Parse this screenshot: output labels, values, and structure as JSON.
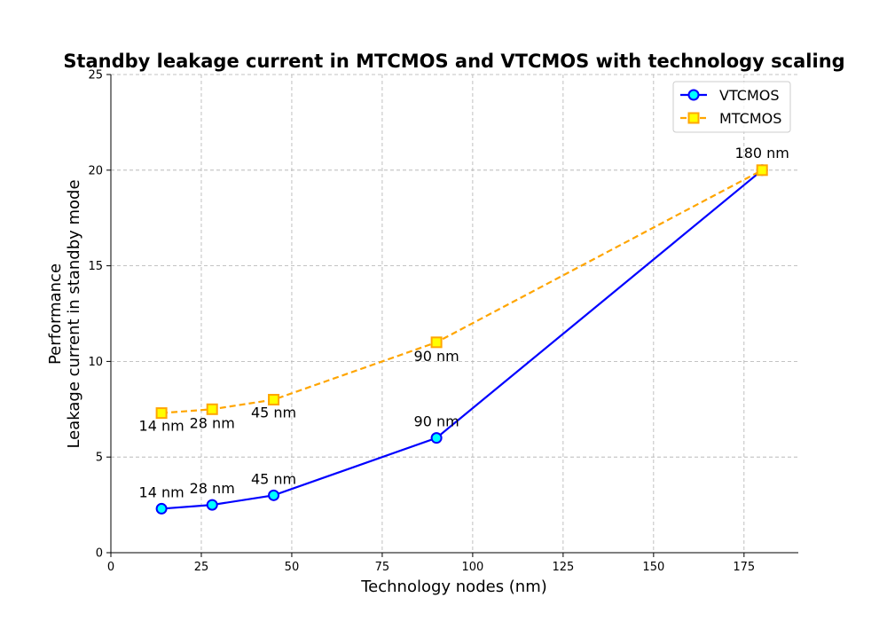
{
  "chart_data": {
    "type": "line",
    "title": "Standby leakage current in MTCMOS and VTCMOS with technology scaling",
    "xlabel": "Technology nodes (nm)",
    "ylabel_line1": "Performance",
    "ylabel_line2": "Leakage current in standby mode",
    "xlim": [
      0,
      190
    ],
    "ylim": [
      0,
      25
    ],
    "xticks": [
      0,
      25,
      50,
      75,
      100,
      125,
      150,
      175
    ],
    "yticks": [
      0,
      5,
      10,
      15,
      20,
      25
    ],
    "grid": true,
    "legend_position": "top-right",
    "series": [
      {
        "name": "VTCMOS",
        "color": "#0000ff",
        "marker": "circle",
        "marker_fill": "#00ffff",
        "line_style": "solid",
        "x": [
          14,
          28,
          45,
          90,
          180
        ],
        "y": [
          2.3,
          2.5,
          3.0,
          6.0,
          20.0
        ],
        "point_labels": [
          "14 nm",
          "28 nm",
          "45 nm",
          "90 nm",
          null
        ]
      },
      {
        "name": "MTCMOS",
        "color": "#ffa500",
        "marker": "square",
        "marker_fill": "#ffff00",
        "line_style": "dashed",
        "x": [
          14,
          28,
          45,
          90,
          180
        ],
        "y": [
          7.3,
          7.5,
          8.0,
          11.0,
          20.0
        ],
        "point_labels": [
          "14 nm",
          "28 nm",
          "45 nm",
          "90 nm",
          "180 nm"
        ]
      }
    ]
  }
}
